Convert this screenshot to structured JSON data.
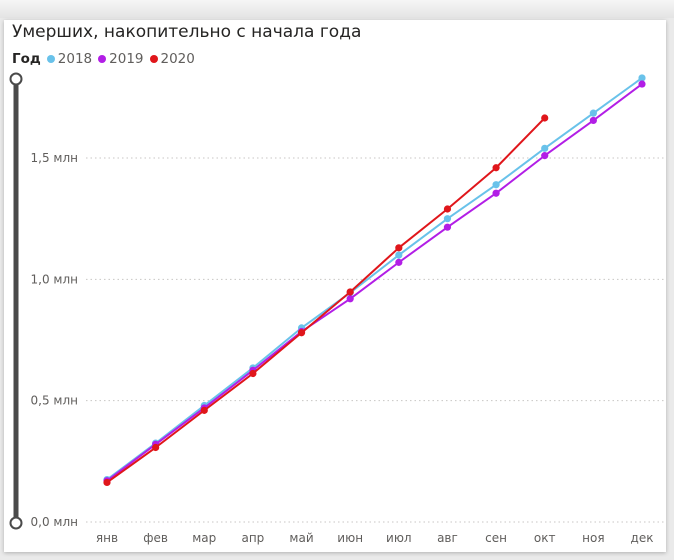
{
  "chart_data": {
    "type": "line",
    "title": "Умерших, накопительно с начала года",
    "legend_title": "Год",
    "legend_position": "top-left",
    "categories": [
      "янв",
      "фев",
      "мар",
      "апр",
      "май",
      "июн",
      "июл",
      "авг",
      "сен",
      "окт",
      "ноя",
      "дек"
    ],
    "y_ticks": [
      {
        "value": 0,
        "label": "0,0 млн"
      },
      {
        "value": 0.5,
        "label": "0,5 млн"
      },
      {
        "value": 1.0,
        "label": "1,0 млн"
      },
      {
        "value": 1.5,
        "label": "1,5 млн"
      }
    ],
    "ylim": [
      0,
      1.97
    ],
    "grid": true,
    "series": [
      {
        "name": "2018",
        "color": "#69c2ea",
        "values": [
          0.175,
          0.325,
          0.48,
          0.635,
          0.8,
          0.945,
          1.1,
          1.25,
          1.39,
          1.54,
          1.685,
          1.83
        ]
      },
      {
        "name": "2019",
        "color": "#b21ee6",
        "values": [
          0.17,
          0.32,
          0.47,
          0.625,
          0.785,
          0.92,
          1.07,
          1.215,
          1.355,
          1.51,
          1.655,
          1.805
        ]
      },
      {
        "name": "2020",
        "color": "#e0161b",
        "values": [
          0.163,
          0.307,
          0.46,
          0.612,
          0.78,
          0.948,
          1.13,
          1.29,
          1.46,
          1.665,
          null,
          null
        ]
      }
    ]
  }
}
